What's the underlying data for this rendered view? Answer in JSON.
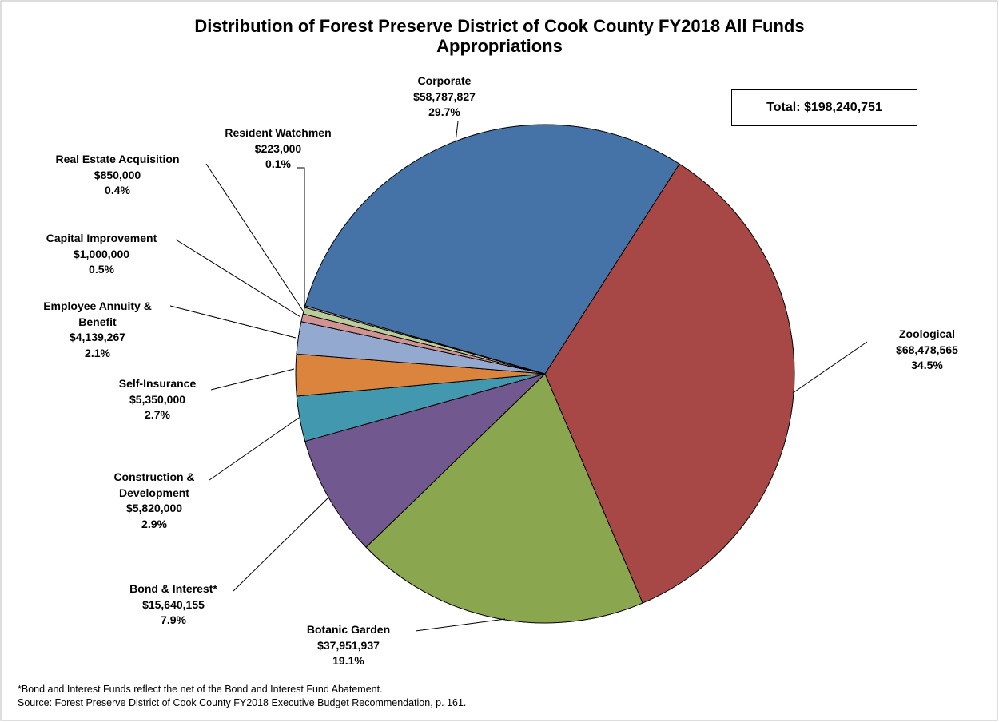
{
  "chart_data": {
    "type": "pie",
    "title": "Distribution of Forest Preserve District of Cook County FY2018 All Funds Appropriations",
    "total_label": "Total: $198,240,751",
    "categories": [
      "Zoological",
      "Botanic Garden",
      "Bond & Interest*",
      "Construction & Development",
      "Self-Insurance",
      "Employee Annuity & Benefit",
      "Capital Improvement",
      "Real Estate Acquisition",
      "Resident Watchmen",
      "Corporate"
    ],
    "values": [
      68478565,
      37951937,
      15640155,
      5820000,
      5350000,
      4139267,
      1000000,
      850000,
      223000,
      58787827
    ],
    "value_labels": [
      "$68,478,565",
      "$37,951,937",
      "$15,640,155",
      "$5,820,000",
      "$5,350,000",
      "$4,139,267",
      "$1,000,000",
      "$850,000",
      "$223,000",
      "$58,787,827"
    ],
    "percent_labels": [
      "34.5%",
      "19.1%",
      "7.9%",
      "2.9%",
      "2.7%",
      "2.1%",
      "0.5%",
      "0.4%",
      "0.1%",
      "29.7%"
    ],
    "colors": [
      "#a84846",
      "#8aa64e",
      "#71588f",
      "#4198af",
      "#db843d",
      "#93a9cf",
      "#d19392",
      "#b9cd96",
      "#a99bbd",
      "#4572a7"
    ],
    "footnotes": [
      "*Bond and Interest Funds reflect the net of the Bond and Interest Fund Abatement.",
      "Source: Forest Preserve District of Cook County FY2018 Executive Budget Recommendation, p. 161."
    ]
  }
}
